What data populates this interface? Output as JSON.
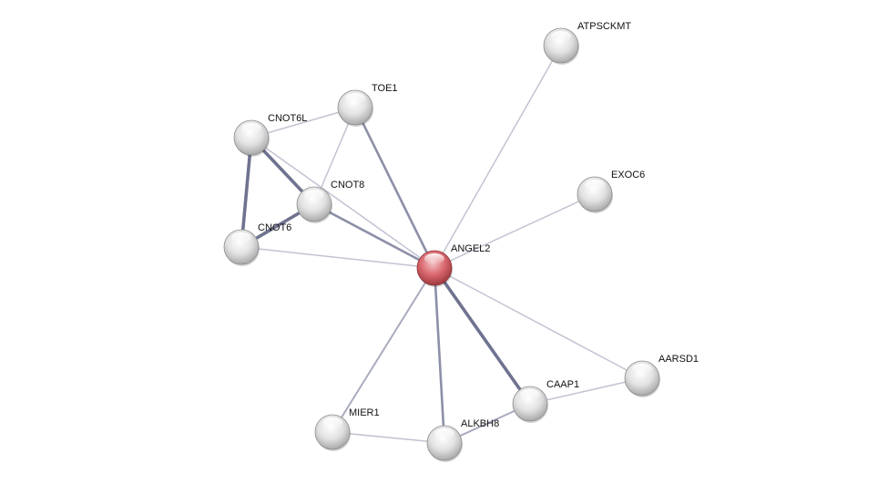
{
  "colors": {
    "query_node": "#d9666d",
    "neighbor_node": "#e4e4e4",
    "edge": "#7e819c"
  },
  "nodes": [
    {
      "id": "ANGEL2",
      "label": "ANGEL2",
      "query": true
    },
    {
      "id": "ATPSCKMT",
      "label": "ATPSCKMT",
      "query": false
    },
    {
      "id": "TOE1",
      "label": "TOE1",
      "query": false
    },
    {
      "id": "CNOT6L",
      "label": "CNOT6L",
      "query": false
    },
    {
      "id": "CNOT8",
      "label": "CNOT8",
      "query": false
    },
    {
      "id": "CNOT6",
      "label": "CNOT6",
      "query": false
    },
    {
      "id": "EXOC6",
      "label": "EXOC6",
      "query": false
    },
    {
      "id": "AARSD1",
      "label": "AARSD1",
      "query": false
    },
    {
      "id": "CAAP1",
      "label": "CAAP1",
      "query": false
    },
    {
      "id": "MIER1",
      "label": "MIER1",
      "query": false
    },
    {
      "id": "ALKBH8",
      "label": "ALKBH8",
      "query": false
    }
  ],
  "edges": [
    {
      "source": "ANGEL2",
      "target": "ATPSCKMT",
      "strength": 1
    },
    {
      "source": "ANGEL2",
      "target": "EXOC6",
      "strength": 1
    },
    {
      "source": "ANGEL2",
      "target": "TOE1",
      "strength": 2
    },
    {
      "source": "ANGEL2",
      "target": "CNOT6L",
      "strength": 1
    },
    {
      "source": "ANGEL2",
      "target": "CNOT8",
      "strength": 2
    },
    {
      "source": "ANGEL2",
      "target": "CNOT6",
      "strength": 1
    },
    {
      "source": "ANGEL2",
      "target": "AARSD1",
      "strength": 1
    },
    {
      "source": "ANGEL2",
      "target": "CAAP1",
      "strength": 3
    },
    {
      "source": "ANGEL2",
      "target": "ALKBH8",
      "strength": 2
    },
    {
      "source": "ANGEL2",
      "target": "MIER1",
      "strength": 1.5
    },
    {
      "source": "CNOT6L",
      "target": "TOE1",
      "strength": 1
    },
    {
      "source": "CNOT6L",
      "target": "CNOT8",
      "strength": 3
    },
    {
      "source": "CNOT6L",
      "target": "CNOT6",
      "strength": 3
    },
    {
      "source": "CNOT6",
      "target": "CNOT8",
      "strength": 3
    },
    {
      "source": "TOE1",
      "target": "CNOT8",
      "strength": 1
    },
    {
      "source": "CAAP1",
      "target": "AARSD1",
      "strength": 1
    },
    {
      "source": "CAAP1",
      "target": "ALKBH8",
      "strength": 1.5
    },
    {
      "source": "MIER1",
      "target": "ALKBH8",
      "strength": 1
    }
  ]
}
